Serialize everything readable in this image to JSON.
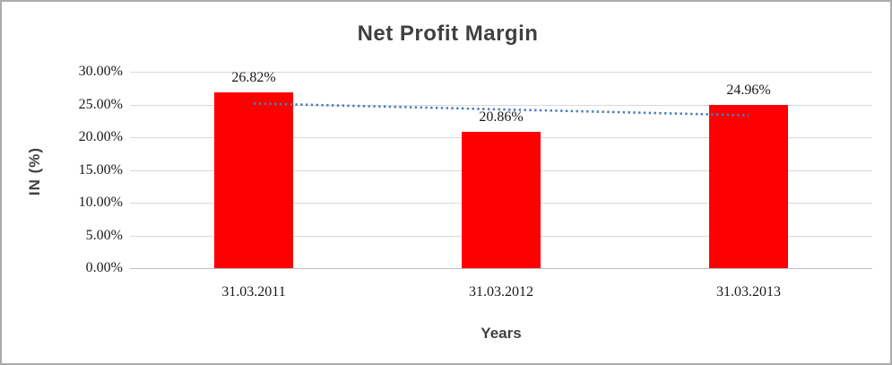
{
  "window": {
    "background": "#FFFFFF",
    "border_color": "#ABABAB"
  },
  "chart_data": {
    "type": "bar",
    "title": "Net Profit Margin",
    "xlabel": "Years",
    "ylabel": "IN (%)",
    "categories": [
      "31.03.2011",
      "31.03.2012",
      "31.03.2013"
    ],
    "values": [
      26.82,
      20.86,
      24.96
    ],
    "data_labels": [
      "26.82%",
      "20.86%",
      "24.96%"
    ],
    "ylim": [
      0,
      30
    ],
    "ytick_step": 5,
    "ytick_labels": [
      "0.00%",
      "5.00%",
      "10.00%",
      "15.00%",
      "20.00%",
      "25.00%",
      "30.00%"
    ],
    "grid": true,
    "legend_position": "none",
    "bar_color": "#FF0000",
    "gridline_color": "#D9D9D9",
    "axis_line_color": "#BFBFBF",
    "title_color": "#404040",
    "label_color": "#1A1A1A",
    "trendline": {
      "type": "linear",
      "style": "dotted",
      "color": "#4A7EBB",
      "start_value": 25.15,
      "end_value": 23.35
    }
  }
}
